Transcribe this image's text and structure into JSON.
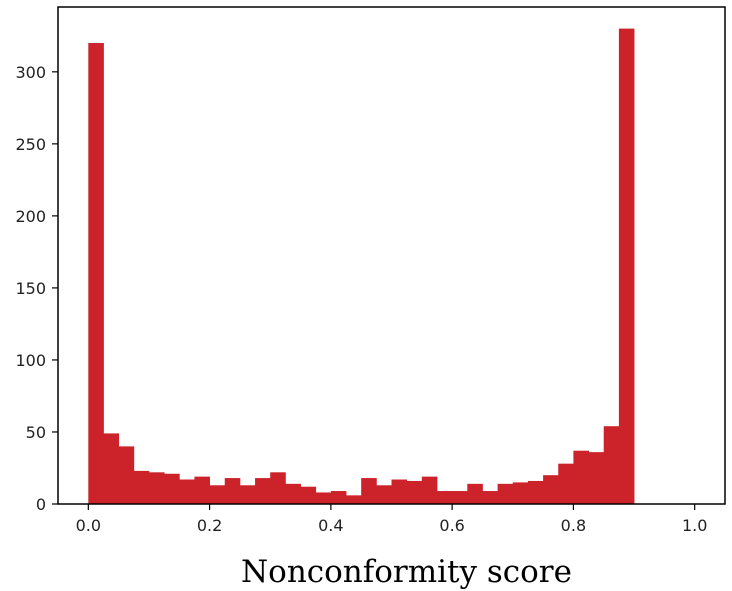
{
  "chart_data": {
    "type": "bar",
    "title": "",
    "xlabel": "Nonconformity score",
    "ylabel": "",
    "bin_width": 0.025,
    "bin_start": 0.0,
    "xlim": [
      -0.05,
      1.05
    ],
    "ylim": [
      0,
      345
    ],
    "xticks": [
      0.0,
      0.2,
      0.4,
      0.6,
      0.8,
      1.0
    ],
    "xtick_labels": [
      "0.0",
      "0.2",
      "0.4",
      "0.6",
      "0.8",
      "1.0"
    ],
    "yticks": [
      0,
      50,
      100,
      150,
      200,
      250,
      300
    ],
    "ytick_labels": [
      "0",
      "50",
      "100",
      "150",
      "200",
      "250",
      "300"
    ],
    "values": [
      320,
      49,
      40,
      23,
      22,
      21,
      17,
      19,
      13,
      18,
      13,
      18,
      22,
      14,
      12,
      8,
      9,
      6,
      18,
      13,
      17,
      16,
      19,
      9,
      9,
      14,
      9,
      14,
      15,
      16,
      20,
      28,
      37,
      36,
      54,
      330
    ],
    "grid": false,
    "legend": "none",
    "bar_color": "#cc2229"
  }
}
